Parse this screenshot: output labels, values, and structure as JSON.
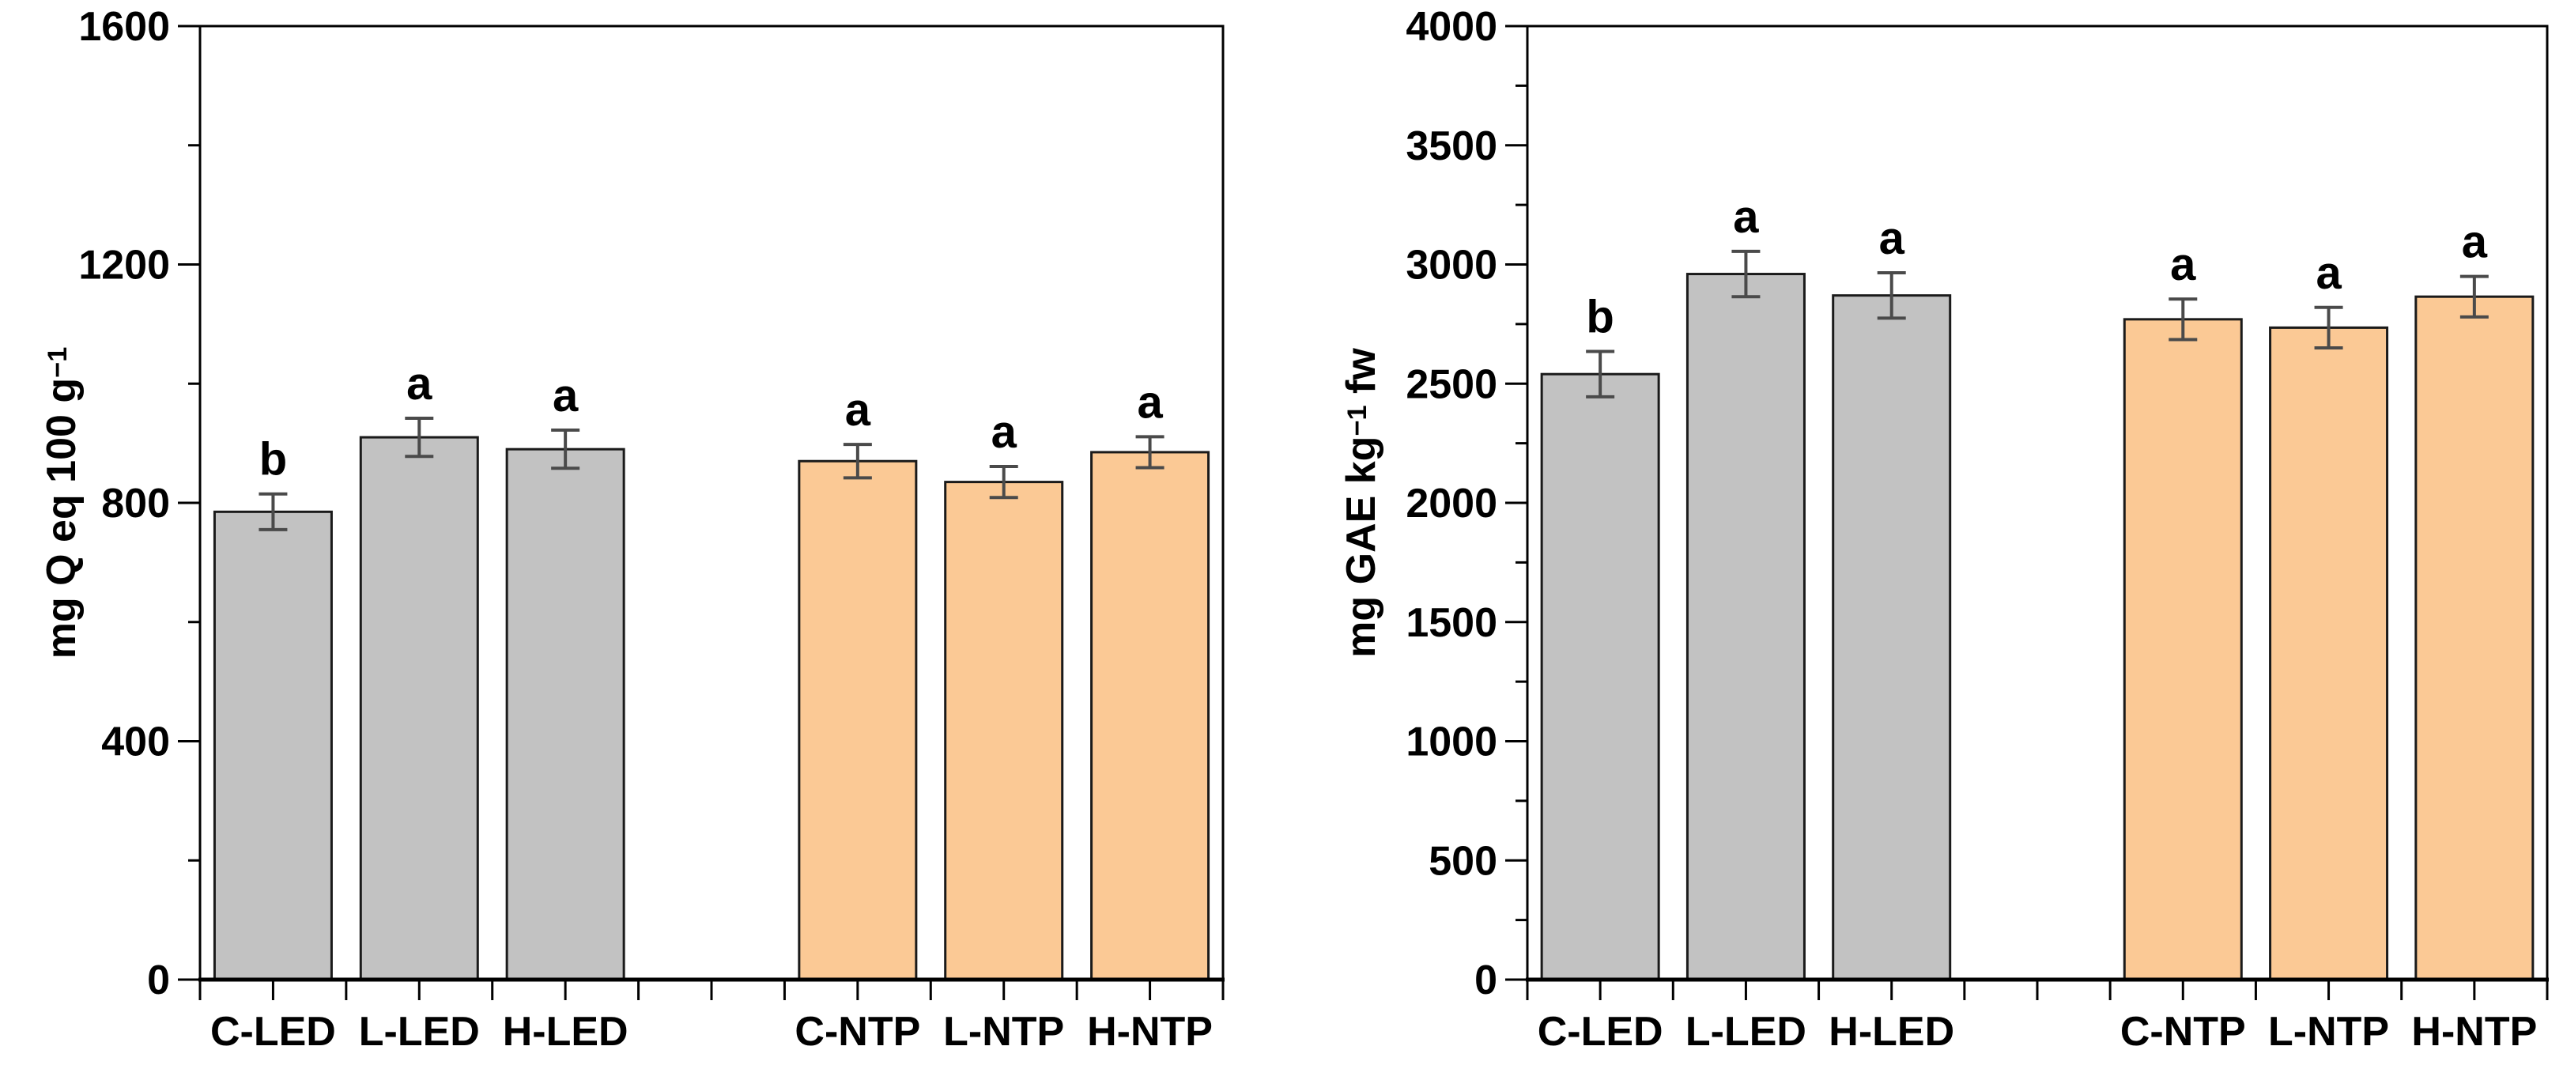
{
  "figure": {
    "background": "#ffffff",
    "panel1_ylabel": {
      "pre": "mg Q eq 100 g",
      "sup": "−1",
      "post": ""
    },
    "panel2_ylabel": {
      "pre": "mg GAE kg",
      "sup": "−1",
      "post": " fw"
    },
    "colors": {
      "led_bar_fill": "#c2c2c2",
      "ntp_bar_fill": "#fbc995",
      "bar_outline": "#1a1a1a",
      "error_bar": "#4a4a4a",
      "axis": "#000000",
      "text": "#000000"
    }
  },
  "chart_data": [
    {
      "type": "bar",
      "title": "",
      "xlabel": "",
      "ylabel": "mg Q eq 100 g−1",
      "categories": [
        "C-LED",
        "L-LED",
        "H-LED",
        "C-NTP",
        "L-NTP",
        "H-NTP"
      ],
      "values": [
        785,
        910,
        890,
        870,
        835,
        885
      ],
      "error_bars": [
        30,
        32,
        32,
        28,
        26,
        26
      ],
      "sig_letters": [
        "b",
        "a",
        "a",
        "a",
        "a",
        "a"
      ],
      "bar_groups": [
        "LED",
        "LED",
        "LED",
        "NTP",
        "NTP",
        "NTP"
      ],
      "bar_colors": [
        "#c2c2c2",
        "#c2c2c2",
        "#c2c2c2",
        "#fbc995",
        "#fbc995",
        "#fbc995"
      ],
      "ylim": [
        0,
        1600
      ],
      "ytick_major": 400,
      "ytick_minor": 200,
      "ytick_labels": [
        "0",
        "400",
        "800",
        "1200",
        "1600"
      ],
      "grid": false,
      "legend": "none"
    },
    {
      "type": "bar",
      "title": "",
      "xlabel": "",
      "ylabel": "mg GAE kg−1 fw",
      "categories": [
        "C-LED",
        "L-LED",
        "H-LED",
        "C-NTP",
        "L-NTP",
        "H-NTP"
      ],
      "values": [
        2540,
        2960,
        2870,
        2770,
        2735,
        2865
      ],
      "error_bars": [
        95,
        95,
        95,
        85,
        85,
        85
      ],
      "sig_letters": [
        "b",
        "a",
        "a",
        "a",
        "a",
        "a"
      ],
      "bar_groups": [
        "LED",
        "LED",
        "LED",
        "NTP",
        "NTP",
        "NTP"
      ],
      "bar_colors": [
        "#c2c2c2",
        "#c2c2c2",
        "#c2c2c2",
        "#fbc995",
        "#fbc995",
        "#fbc995"
      ],
      "ylim": [
        0,
        4000
      ],
      "ytick_major": 500,
      "ytick_minor": 250,
      "ytick_labels": [
        "0",
        "500",
        "1000",
        "1500",
        "2000",
        "2500",
        "3000",
        "3500",
        "4000"
      ],
      "grid": false,
      "legend": "none"
    }
  ]
}
